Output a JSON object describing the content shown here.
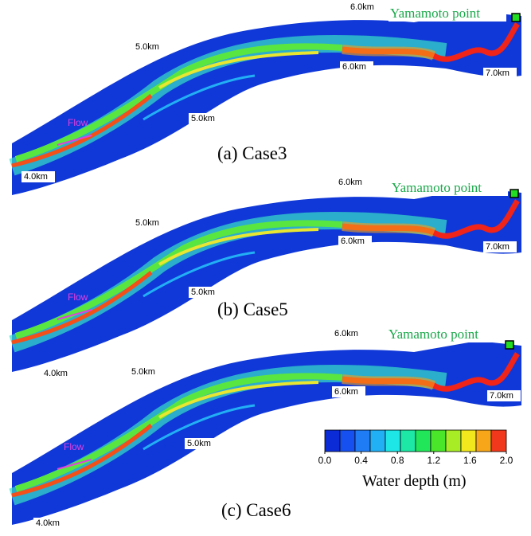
{
  "panels": [
    {
      "caption": "(a) Case3",
      "point": "Yamamoto point",
      "flow": "Flow",
      "km": [
        "6.0km",
        "5.0km",
        "6.0km",
        "7.0km",
        "5.0km",
        "4.0km"
      ]
    },
    {
      "caption": "(b) Case5",
      "point": "Yamamoto point",
      "flow": "Flow",
      "km": [
        "6.0km",
        "5.0km",
        "6.0km",
        "7.0km",
        "5.0km",
        "4.0km"
      ]
    },
    {
      "caption": "(c) Case6",
      "point": "Yamamoto point",
      "flow": "Flow",
      "km": [
        "6.0km",
        "5.0km",
        "6.0km",
        "7.0km",
        "5.0km",
        "4.0km"
      ]
    }
  ],
  "colorbar": {
    "title": "Water depth (m)",
    "lim": [
      0,
      2
    ],
    "colors": [
      "#0a2bd6",
      "#1650f0",
      "#1f7cf5",
      "#22b0f5",
      "#1fe6e6",
      "#1de8a5",
      "#22e65a",
      "#4ae62a",
      "#a8ec26",
      "#f2e81e",
      "#f7a619",
      "#f2381c"
    ],
    "ticks": [
      {
        "value": 0,
        "label": "0.0"
      },
      {
        "value": 0.4,
        "label": "0.4"
      },
      {
        "value": 0.8,
        "label": "0.8"
      },
      {
        "value": 1.2,
        "label": "1.2"
      },
      {
        "value": 1.6,
        "label": "1.6"
      },
      {
        "value": 2,
        "label": "2.0"
      }
    ]
  }
}
